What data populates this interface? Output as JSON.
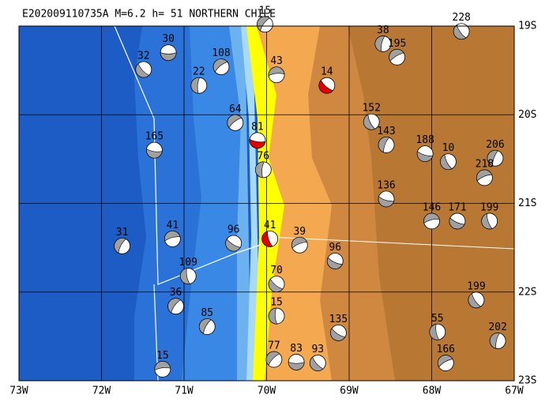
{
  "map": {
    "title": "E202009110735A M=6.2 h= 51 NORTHERN CHILE",
    "xlim": [
      73,
      67
    ],
    "ylim": [
      19,
      23
    ],
    "xticks": [
      {
        "value": 73,
        "label": "73W"
      },
      {
        "value": 72,
        "label": "72W"
      },
      {
        "value": 71,
        "label": "71W"
      },
      {
        "value": 70,
        "label": "70W"
      },
      {
        "value": 69,
        "label": "69W"
      },
      {
        "value": 68,
        "label": "68W"
      },
      {
        "value": 67,
        "label": "67W"
      }
    ],
    "yticks": [
      {
        "value": 19,
        "label": "19S"
      },
      {
        "value": 20,
        "label": "20S"
      },
      {
        "value": 21,
        "label": "21S"
      },
      {
        "value": 22,
        "label": "22S"
      },
      {
        "value": 23,
        "label": "23S"
      }
    ],
    "grid": true,
    "ball_color": "#a0a0a0",
    "events": [
      {
        "depth": 30,
        "lon": 71.19,
        "lat": 19.3
      },
      {
        "depth": 32,
        "lon": 71.49,
        "lat": 19.49
      },
      {
        "depth": 22,
        "lon": 70.82,
        "lat": 19.67
      },
      {
        "depth": 108,
        "lon": 70.55,
        "lat": 19.46
      },
      {
        "depth": 81,
        "lon": 70.11,
        "lat": 20.29,
        "color": "#e00000"
      },
      {
        "depth": 228,
        "lon": 67.64,
        "lat": 19.06
      },
      {
        "depth": 38,
        "lon": 68.59,
        "lat": 19.2
      },
      {
        "depth": 195,
        "lon": 68.42,
        "lat": 19.35
      },
      {
        "depth": 188,
        "lon": 68.08,
        "lat": 20.44
      },
      {
        "depth": 10,
        "lon": 67.8,
        "lat": 20.53
      },
      {
        "depth": 206,
        "lon": 67.23,
        "lat": 20.49
      },
      {
        "depth": 218,
        "lon": 67.36,
        "lat": 20.71
      },
      {
        "depth": 171,
        "lon": 67.69,
        "lat": 21.2
      },
      {
        "depth": 199,
        "lon": 67.3,
        "lat": 21.2
      },
      {
        "depth": 31,
        "lon": 71.75,
        "lat": 21.48
      },
      {
        "depth": 41,
        "lon": 71.14,
        "lat": 21.4
      },
      {
        "depth": 96,
        "lon": 70.4,
        "lat": 21.45
      },
      {
        "depth": 109,
        "lon": 70.95,
        "lat": 21.82
      },
      {
        "depth": 36,
        "lon": 71.1,
        "lat": 22.16
      },
      {
        "depth": 15,
        "lon": 71.26,
        "lat": 22.87
      },
      {
        "depth": 70,
        "lon": 69.88,
        "lat": 21.91
      },
      {
        "depth": 15,
        "lon": 69.88,
        "lat": 22.27
      },
      {
        "depth": 77,
        "lon": 69.91,
        "lat": 22.76
      },
      {
        "depth": 83,
        "lon": 69.64,
        "lat": 22.79
      },
      {
        "depth": 93,
        "lon": 69.38,
        "lat": 22.8
      },
      {
        "depth": 76,
        "lon": 70.04,
        "lat": 20.62
      },
      {
        "depth": 64,
        "lon": 70.38,
        "lat": 20.09
      },
      {
        "depth": 165,
        "lon": 71.36,
        "lat": 20.4
      },
      {
        "depth": 199,
        "lon": 67.46,
        "lat": 22.09
      },
      {
        "depth": 202,
        "lon": 67.2,
        "lat": 22.55
      },
      {
        "depth": 166,
        "lon": 67.83,
        "lat": 22.8
      },
      {
        "depth": 136,
        "lon": 68.55,
        "lat": 20.95
      },
      {
        "depth": 152,
        "lon": 68.73,
        "lat": 20.08
      },
      {
        "depth": 143,
        "lon": 68.55,
        "lat": 20.34
      },
      {
        "depth": 39,
        "lon": 69.6,
        "lat": 21.47
      },
      {
        "depth": 96,
        "lon": 69.17,
        "lat": 21.65
      },
      {
        "depth": 41,
        "lon": 69.96,
        "lat": 21.4,
        "color": "#e00000"
      },
      {
        "depth": 85,
        "lon": 70.72,
        "lat": 22.39
      },
      {
        "depth": 146,
        "lon": 68.0,
        "lat": 21.2
      },
      {
        "depth": 135,
        "lon": 69.13,
        "lat": 22.46
      },
      {
        "depth": 55,
        "lon": 67.93,
        "lat": 22.45
      },
      {
        "depth": 15,
        "lon": 70.02,
        "lat": 18.98
      },
      {
        "depth": 43,
        "lon": 69.88,
        "lat": 19.55
      },
      {
        "depth": 14,
        "lon": 69.27,
        "lat": 19.67,
        "color": "#e00000"
      }
    ]
  }
}
